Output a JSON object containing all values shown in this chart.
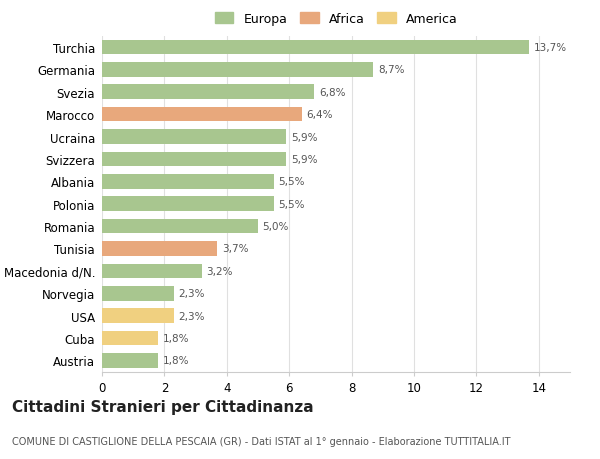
{
  "categories": [
    "Turchia",
    "Germania",
    "Svezia",
    "Marocco",
    "Ucraina",
    "Svizzera",
    "Albania",
    "Polonia",
    "Romania",
    "Tunisia",
    "Macedonia d/N.",
    "Norvegia",
    "USA",
    "Cuba",
    "Austria"
  ],
  "values": [
    13.7,
    8.7,
    6.8,
    6.4,
    5.9,
    5.9,
    5.5,
    5.5,
    5.0,
    3.7,
    3.2,
    2.3,
    2.3,
    1.8,
    1.8
  ],
  "labels": [
    "13,7%",
    "8,7%",
    "6,8%",
    "6,4%",
    "5,9%",
    "5,9%",
    "5,5%",
    "5,5%",
    "5,0%",
    "3,7%",
    "3,2%",
    "2,3%",
    "2,3%",
    "1,8%",
    "1,8%"
  ],
  "colors": [
    "#a8c68f",
    "#a8c68f",
    "#a8c68f",
    "#e8a87c",
    "#a8c68f",
    "#a8c68f",
    "#a8c68f",
    "#a8c68f",
    "#a8c68f",
    "#e8a87c",
    "#a8c68f",
    "#a8c68f",
    "#f0d080",
    "#f0d080",
    "#a8c68f"
  ],
  "legend": [
    {
      "label": "Europa",
      "color": "#a8c68f"
    },
    {
      "label": "Africa",
      "color": "#e8a87c"
    },
    {
      "label": "America",
      "color": "#f0d080"
    }
  ],
  "title": "Cittadini Stranieri per Cittadinanza",
  "subtitle": "COMUNE DI CASTIGLIONE DELLA PESCAIA (GR) - Dati ISTAT al 1° gennaio - Elaborazione TUTTITALIA.IT",
  "xlim": [
    0,
    15
  ],
  "xticks": [
    0,
    2,
    4,
    6,
    8,
    10,
    12,
    14
  ],
  "background_color": "#ffffff",
  "grid_color": "#e0e0e0",
  "bar_height": 0.65,
  "label_fontsize": 7.5,
  "tick_fontsize": 8.5,
  "legend_fontsize": 9,
  "title_fontsize": 11,
  "subtitle_fontsize": 7
}
